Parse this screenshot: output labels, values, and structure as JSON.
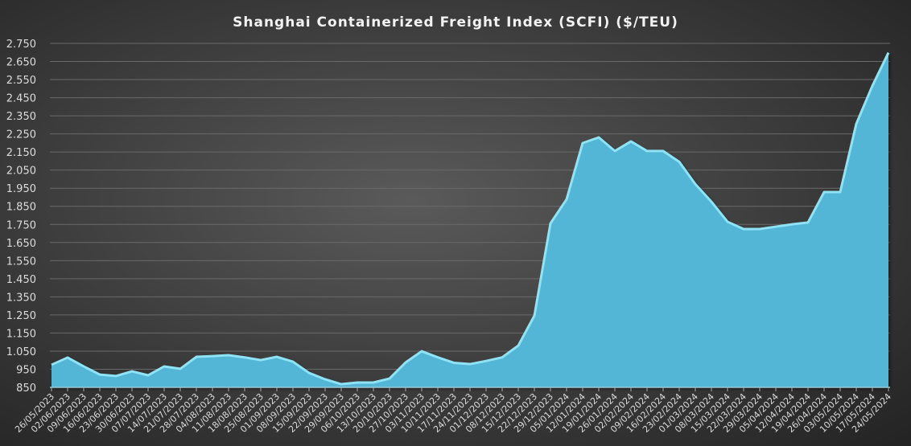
{
  "chart_data": {
    "type": "area",
    "title": "Shanghai Containerized Freight Index  (SCFI) ($/TEU)",
    "xlabel": "",
    "ylabel": "",
    "ylim": [
      850,
      2750
    ],
    "yticks": [
      "850",
      "950",
      "1.050",
      "1.150",
      "1.250",
      "1.350",
      "1.450",
      "1.550",
      "1.650",
      "1.750",
      "1.850",
      "1.950",
      "2.050",
      "2.150",
      "2.250",
      "2.350",
      "2.450",
      "2.550",
      "2.650",
      "2.750"
    ],
    "grid": true,
    "legend": "none",
    "colors": {
      "fill": "#52b6d6",
      "edge": "#8fe3f5",
      "grid": "#6a6a6a",
      "text": "#dcdcdc"
    },
    "categories": [
      "26/05/2023",
      "02/06/2023",
      "09/06/2023",
      "16/06/2023",
      "23/06/2023",
      "30/06/2023",
      "07/07/2023",
      "14/07/2023",
      "21/07/2023",
      "28/07/2023",
      "04/08/2023",
      "11/08/2023",
      "18/08/2023",
      "25/08/2023",
      "01/09/2023",
      "08/09/2023",
      "15/09/2023",
      "22/09/2023",
      "29/09/2023",
      "06/10/2023",
      "13/10/2023",
      "20/10/2023",
      "27/10/2023",
      "03/11/2023",
      "10/11/2023",
      "17/11/2023",
      "24/11/2023",
      "01/12/2023",
      "08/12/2023",
      "15/12/2023",
      "22/12/2023",
      "29/12/2023",
      "05/01/2024",
      "12/01/2024",
      "19/01/2024",
      "26/01/2024",
      "02/02/2024",
      "09/02/2024",
      "16/02/2024",
      "23/02/2024",
      "01/03/2024",
      "08/03/2024",
      "15/03/2024",
      "22/03/2024",
      "29/03/2024",
      "05/04/2024",
      "12/04/2024",
      "19/04/2024",
      "26/04/2024",
      "03/05/2024",
      "10/05/2024",
      "17/05/2024",
      "24/05/2024"
    ],
    "values": [
      979,
      1019,
      970,
      925,
      917,
      943,
      921,
      970,
      957,
      1023,
      1027,
      1032,
      1020,
      1005,
      1023,
      996,
      934,
      899,
      872,
      881,
      881,
      903,
      992,
      1054,
      1020,
      990,
      983,
      1000,
      1020,
      1085,
      1250,
      1760,
      1893,
      2204,
      2235,
      2160,
      2213,
      2160,
      2160,
      2100,
      1977,
      1880,
      1769,
      1729,
      1729,
      1742,
      1755,
      1765,
      1933,
      1933,
      2310,
      2520,
      2703
    ]
  }
}
